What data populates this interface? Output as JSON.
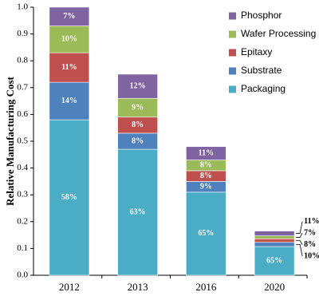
{
  "chart_data": {
    "type": "stacked_bar",
    "y_label": "Relative Manufacturing Cost",
    "categories": [
      "2012",
      "2013",
      "2016",
      "2020"
    ],
    "series": [
      {
        "name": "Packaging",
        "color": "#4bacc6",
        "values": [
          0.58,
          0.47,
          0.31,
          0.107
        ],
        "value_labels": [
          "58%",
          "63%",
          "65%",
          "65%"
        ]
      },
      {
        "name": "Substrate",
        "color": "#4f81bd",
        "values": [
          0.14,
          0.06,
          0.04,
          0.016
        ],
        "value_labels": [
          "14%",
          "8%",
          "9%",
          "10%"
        ]
      },
      {
        "name": "Epitaxy",
        "color": "#c0504d",
        "values": [
          0.11,
          0.06,
          0.04,
          0.013
        ],
        "value_labels": [
          "11%",
          "8%",
          "8%",
          "8%"
        ]
      },
      {
        "name": "Wafer Processing",
        "color": "#9bbb59",
        "values": [
          0.1,
          0.07,
          0.04,
          0.011
        ],
        "value_labels": [
          "10%",
          "9%",
          "8%",
          "7%"
        ]
      },
      {
        "name": "Phosphor",
        "color": "#8064a2",
        "values": [
          0.07,
          0.09,
          0.05,
          0.018
        ],
        "value_labels": [
          "7%",
          "12%",
          "11%",
          "11%"
        ]
      }
    ],
    "ylim": [
      0,
      1
    ],
    "yticks": [
      {
        "value": 0,
        "label": "0.0"
      },
      0.1,
      0.2,
      0.3,
      0.4,
      0.5,
      0.6,
      0.7,
      0.8,
      0.9,
      {
        "value": 1,
        "label": "1.0"
      }
    ],
    "legend_position": "upper right"
  }
}
